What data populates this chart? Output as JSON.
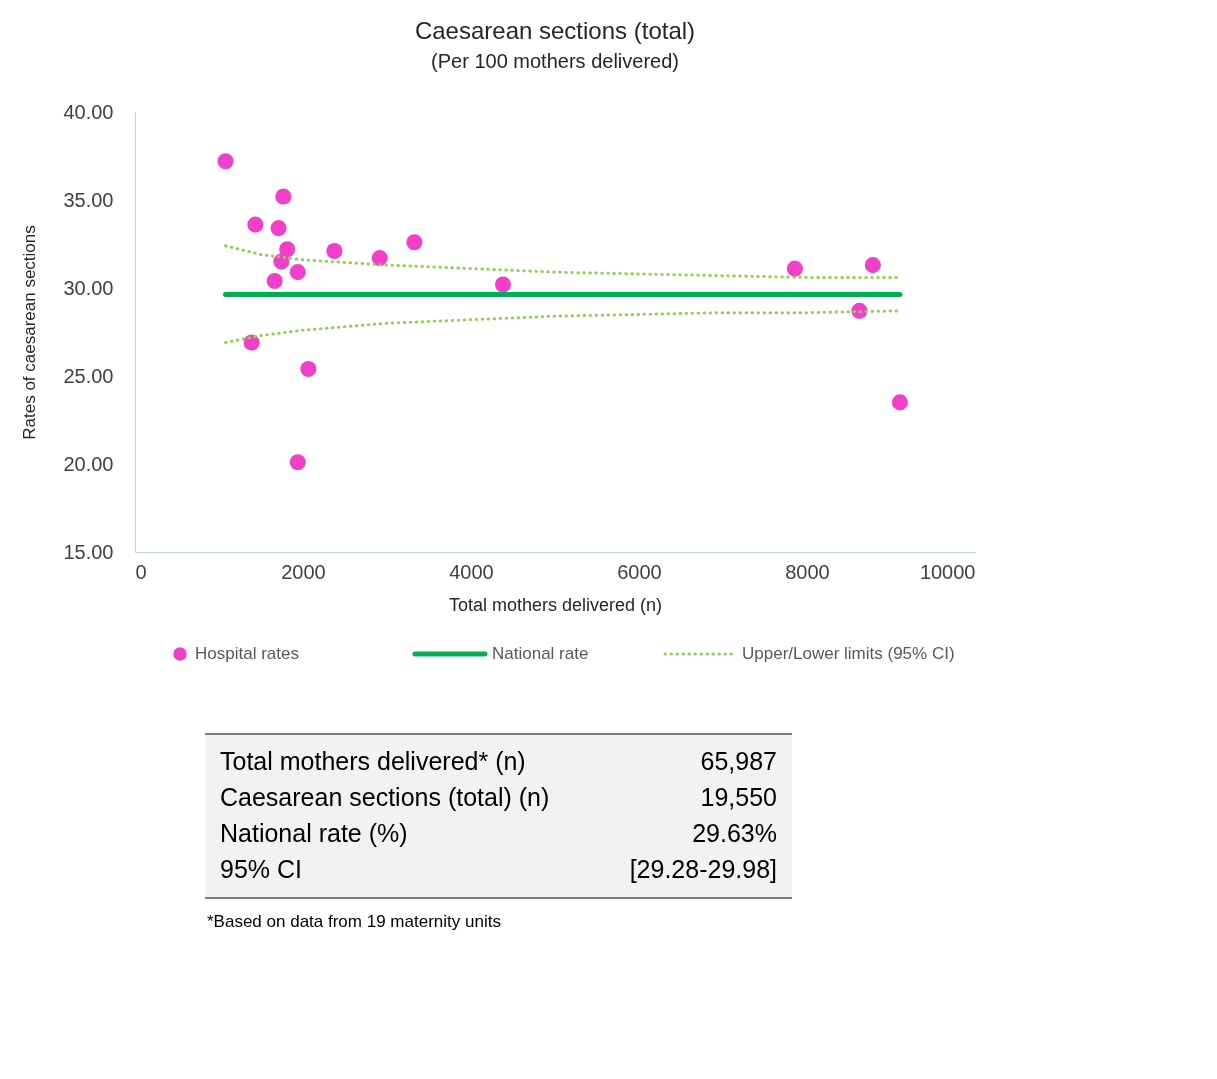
{
  "chart_data": {
    "type": "scatter",
    "title": "Caesarean sections (total)",
    "subtitle": "(Per 100 mothers delivered)",
    "xlabel": "Total mothers delivered (n)",
    "ylabel": "Rates of caesarean sections",
    "xlim": [
      0,
      10000
    ],
    "xticks": [
      0,
      {
        "value": 2000,
        "label": "2000"
      },
      {
        "value": 4000,
        "label": "4000"
      },
      {
        "value": 6000,
        "label": "6000"
      },
      {
        "value": 8000,
        "label": "8000"
      },
      {
        "value": 10000,
        "label": "10000"
      }
    ],
    "ylim": [
      15,
      40
    ],
    "yticks": [
      {
        "value": 15,
        "label": "15.00"
      },
      {
        "value": 20,
        "label": "20.00"
      },
      {
        "value": 25,
        "label": "25.00"
      },
      {
        "value": 30,
        "label": "30.00"
      },
      {
        "value": 35,
        "label": "35.00"
      },
      {
        "value": 40,
        "label": "40.00"
      }
    ],
    "grid": false,
    "legend": "bottom",
    "series": [
      {
        "name": "Hospital rates",
        "marker": "circle",
        "color": "#f03fc8",
        "x": [
          1078,
          1433,
          1766,
          1709,
          1812,
          1743,
          1663,
          1938,
          2374,
          2913,
          3326,
          4381,
          1388,
          2064,
          1938,
          7856,
          8784,
          8624,
          9106
        ],
        "values": [
          37.2,
          33.6,
          35.2,
          33.4,
          32.2,
          31.5,
          30.4,
          30.9,
          32.1,
          31.7,
          32.6,
          30.2,
          26.9,
          25.4,
          20.1,
          31.1,
          31.3,
          28.7,
          23.5
        ]
      },
      {
        "name": "National rate",
        "type": "line",
        "line_style": "solid",
        "color": "#00b050",
        "x": [
          1078,
          9106
        ],
        "values": [
          29.63,
          29.63
        ]
      },
      {
        "name": "Upper/Lower limits (95% CI)",
        "type": "line",
        "line_style": "dotted",
        "color": "#92d050",
        "x": [
          1078,
          1500,
          2000,
          3000,
          4000,
          5000,
          6000,
          7000,
          8000,
          9106
        ],
        "values": [
          32.4,
          31.9,
          31.6,
          31.3,
          31.1,
          30.9,
          30.8,
          30.7,
          30.6,
          30.6
        ]
      },
      {
        "type": "line",
        "line_style": "dotted",
        "color": "#92d050",
        "x": [
          1078,
          1500,
          2000,
          3000,
          4000,
          5000,
          6000,
          7000,
          8000,
          9106
        ],
        "values": [
          26.9,
          27.3,
          27.6,
          28.0,
          28.2,
          28.4,
          28.5,
          28.6,
          28.6,
          28.7
        ]
      }
    ],
    "annotations": [
      "Total mothers delivered* (n)",
      "65,987",
      "Caesarean sections (total) (n)",
      "19,550",
      "National rate (%)",
      "29.63%",
      "95% CI",
      "[29.28-29.98]",
      "*Based on data from 19 maternity units"
    ]
  }
}
